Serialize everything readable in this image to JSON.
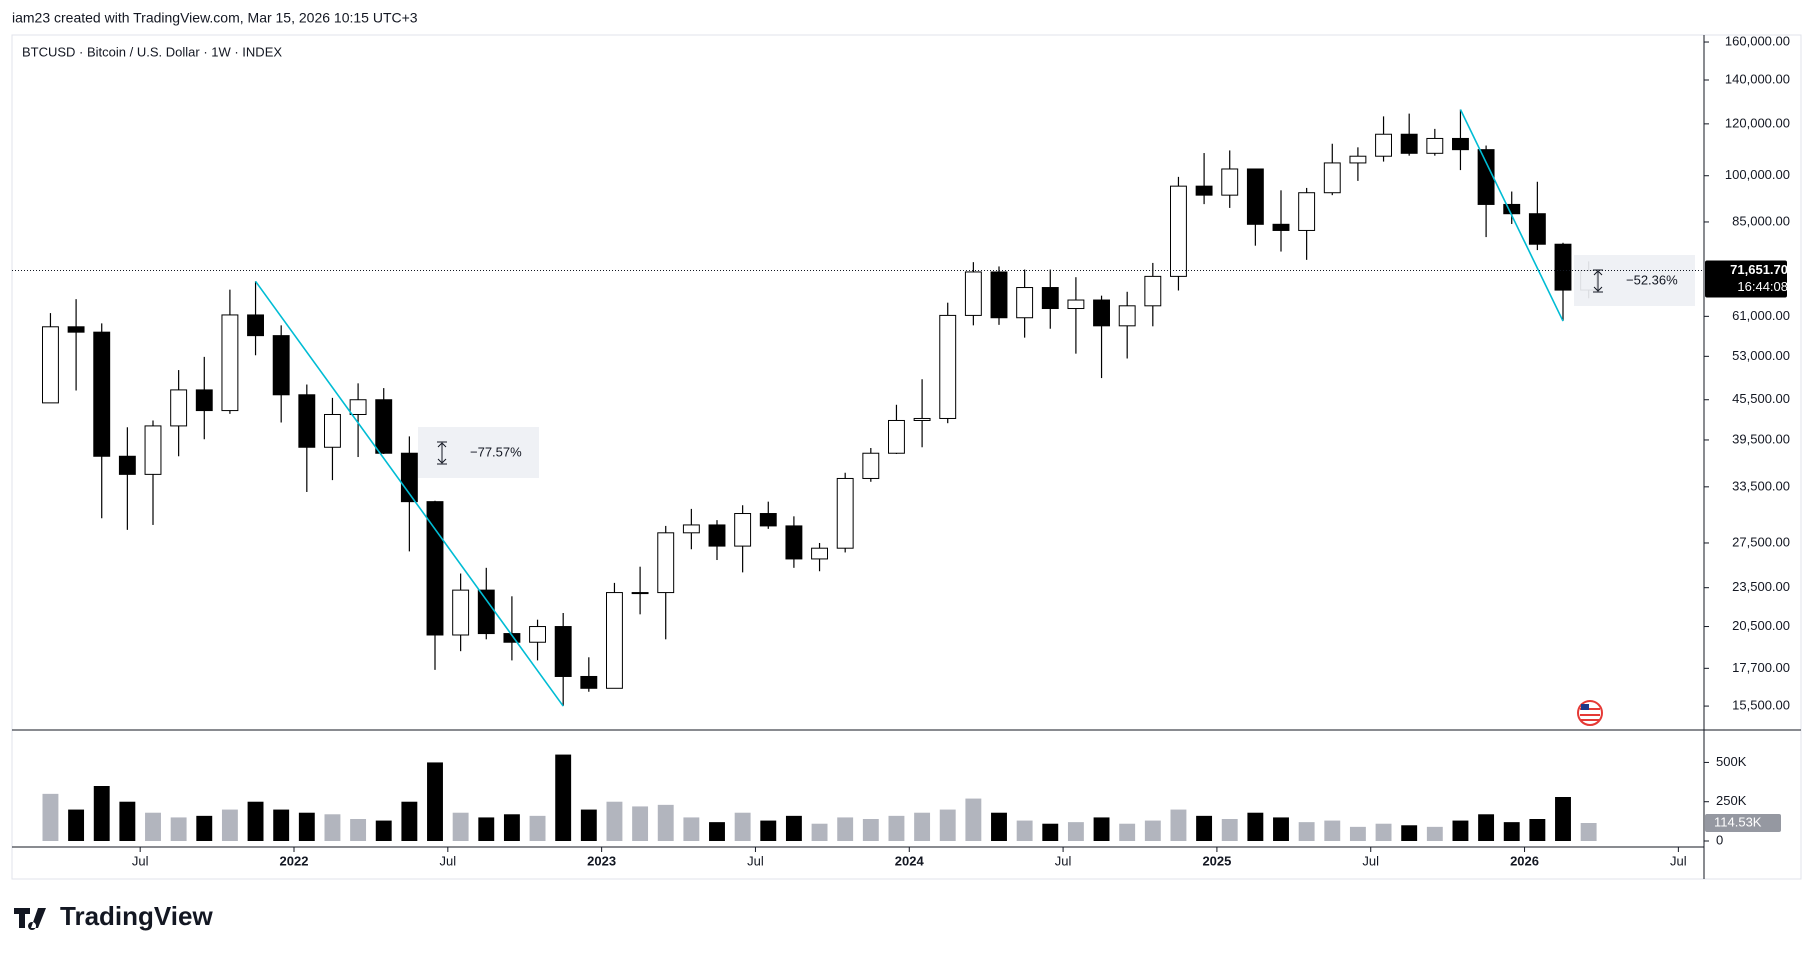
{
  "header": "iam23 created with TradingView.com, Mar 15, 2026 10:15 UTC+3",
  "brand": "TradingView",
  "chart_data": {
    "type": "candlestick",
    "title": "BTCUSD · Bitcoin / U.S. Dollar · 1W · INDEX",
    "log_scale": true,
    "up_color": "#ffffff",
    "down_color": "#000000",
    "x": [
      "2021-03",
      "2021-04",
      "2021-05",
      "2021-06",
      "2021-07",
      "2021-08",
      "2021-09",
      "2021-10",
      "2021-11",
      "2021-12",
      "2022-01",
      "2022-02",
      "2022-03",
      "2022-04",
      "2022-05",
      "2022-06",
      "2022-07",
      "2022-08",
      "2022-09",
      "2022-10",
      "2022-11",
      "2022-12",
      "2023-01",
      "2023-02",
      "2023-03",
      "2023-04",
      "2023-05",
      "2023-06",
      "2023-07",
      "2023-08",
      "2023-09",
      "2023-10",
      "2023-11",
      "2023-12",
      "2024-01",
      "2024-02",
      "2024-03",
      "2024-04",
      "2024-05",
      "2024-06",
      "2024-07",
      "2024-08",
      "2024-09",
      "2024-10",
      "2024-11",
      "2024-12",
      "2025-01",
      "2025-02",
      "2025-03",
      "2025-04",
      "2025-05",
      "2025-06",
      "2025-07",
      "2025-08",
      "2025-09",
      "2025-10",
      "2025-11",
      "2025-12",
      "2026-01",
      "2026-02",
      "2026-03"
    ],
    "open": [
      45000,
      58800,
      57700,
      37300,
      35000,
      41500,
      47100,
      43800,
      61300,
      57000,
      46300,
      38500,
      43200,
      45500,
      37700,
      31800,
      19900,
      23300,
      20000,
      19400,
      20500,
      17200,
      16500,
      23100,
      23100,
      28500,
      29300,
      27200,
      30500,
      29200,
      26000,
      27000,
      34500,
      37700,
      42300,
      42600,
      61200,
      71300,
      60700,
      67500,
      62700,
      64600,
      59000,
      63300,
      70200,
      96400,
      93400,
      102400,
      84300,
      82500,
      94200,
      104600,
      107100,
      115700,
      108200,
      114000,
      109600,
      90400,
      87500,
      78600,
      66900
    ],
    "high": [
      61700,
      64800,
      59500,
      41300,
      42300,
      50500,
      52900,
      67000,
      69000,
      59100,
      48000,
      45800,
      48200,
      47400,
      40000,
      31900,
      24700,
      25200,
      22800,
      21000,
      21500,
      18400,
      23900,
      25300,
      29200,
      31000,
      29800,
      31400,
      31800,
      30200,
      27500,
      35200,
      38400,
      44700,
      48900,
      64000,
      73800,
      72700,
      71900,
      71900,
      70000,
      65600,
      66500,
      73600,
      99600,
      108300,
      109300,
      102500,
      95000,
      95800,
      111900,
      110500,
      123200,
      124400,
      117900,
      126200,
      111200,
      94600,
      97900,
      79000,
      74000
    ],
    "low": [
      45000,
      47000,
      30000,
      28800,
      29300,
      37300,
      39600,
      43300,
      53200,
      42000,
      32900,
      34300,
      37200,
      37600,
      26700,
      17600,
      18800,
      19600,
      18200,
      18200,
      15500,
      16300,
      16500,
      21400,
      19600,
      26900,
      25900,
      24800,
      28900,
      25200,
      24900,
      26600,
      34100,
      37600,
      38500,
      41900,
      59100,
      59200,
      56600,
      58400,
      53500,
      49100,
      52600,
      58900,
      66800,
      90500,
      89300,
      78200,
      76600,
      74400,
      93400,
      98200,
      105100,
      107300,
      107300,
      102000,
      80600,
      84400,
      77000,
      60000,
      65000
    ],
    "close": [
      58800,
      57700,
      37300,
      35000,
      41500,
      47100,
      43800,
      61300,
      57000,
      46300,
      38500,
      43200,
      45500,
      37700,
      31800,
      19900,
      23300,
      20000,
      19400,
      20500,
      17200,
      16500,
      23100,
      23100,
      28500,
      29300,
      27200,
      30500,
      29200,
      26000,
      27000,
      34500,
      37700,
      42300,
      42600,
      61200,
      71300,
      60700,
      67500,
      62700,
      64600,
      59000,
      63300,
      70200,
      96400,
      93400,
      102400,
      84300,
      82500,
      94200,
      104600,
      107100,
      115700,
      108200,
      114000,
      109600,
      90400,
      87500,
      78600,
      66900,
      71651.7
    ],
    "last_price_label": "71,651.70",
    "countdown": "16:44:08",
    "xlim": [
      "2021-02",
      "2026-08"
    ],
    "xticks": [
      {
        "value": "2021-07",
        "label": "Jul"
      },
      {
        "value": "2022-01",
        "label": "2022"
      },
      {
        "value": "2022-07",
        "label": "Jul"
      },
      {
        "value": "2023-01",
        "label": "2023"
      },
      {
        "value": "2023-07",
        "label": "Jul"
      },
      {
        "value": "2024-01",
        "label": "2024"
      },
      {
        "value": "2024-07",
        "label": "Jul"
      },
      {
        "value": "2025-01",
        "label": "2025"
      },
      {
        "value": "2025-07",
        "label": "Jul"
      },
      {
        "value": "2026-01",
        "label": "2026"
      },
      {
        "value": "2026-07",
        "label": "Jul"
      }
    ],
    "ylim": [
      14300,
      164000
    ],
    "yticks": [
      {
        "value": 15500,
        "label": "15,500.00"
      },
      {
        "value": 17700,
        "label": "17,700.00"
      },
      {
        "value": 20500,
        "label": "20,500.00"
      },
      {
        "value": 23500,
        "label": "23,500.00"
      },
      {
        "value": 27500,
        "label": "27,500.00"
      },
      {
        "value": 33500,
        "label": "33,500.00"
      },
      {
        "value": 39500,
        "label": "39,500.00"
      },
      {
        "value": 45500,
        "label": "45,500.00"
      },
      {
        "value": 53000,
        "label": "53,000.00"
      },
      {
        "value": 61000,
        "label": "61,000.00"
      },
      {
        "value": 85000,
        "label": "85,000.00"
      },
      {
        "value": 100000,
        "label": "100,000.00"
      },
      {
        "value": 120000,
        "label": "120,000.00"
      },
      {
        "value": 140000,
        "label": "140,000.00"
      },
      {
        "value": 160000,
        "label": "160,000.00"
      }
    ],
    "volume": {
      "values": [
        300000,
        200000,
        350000,
        250000,
        180000,
        150000,
        160000,
        200000,
        250000,
        200000,
        180000,
        170000,
        140000,
        130000,
        250000,
        500000,
        180000,
        150000,
        170000,
        160000,
        550000,
        200000,
        250000,
        220000,
        230000,
        150000,
        120000,
        180000,
        130000,
        160000,
        110000,
        150000,
        140000,
        160000,
        180000,
        200000,
        270000,
        180000,
        130000,
        110000,
        120000,
        150000,
        110000,
        130000,
        200000,
        160000,
        140000,
        180000,
        150000,
        120000,
        130000,
        90000,
        110000,
        100000,
        90000,
        130000,
        170000,
        120000,
        140000,
        280000,
        114530
      ],
      "last_label": "114.53K",
      "ylim": [
        0,
        700000
      ],
      "yticks": [
        0,
        {
          "value": 250000,
          "label": "250K"
        },
        {
          "value": 500000,
          "label": "500K"
        }
      ],
      "up_color": "#b2b5be",
      "down_color": "#000000"
    },
    "annotations": [
      "−77.57%",
      "−52.36%"
    ]
  }
}
